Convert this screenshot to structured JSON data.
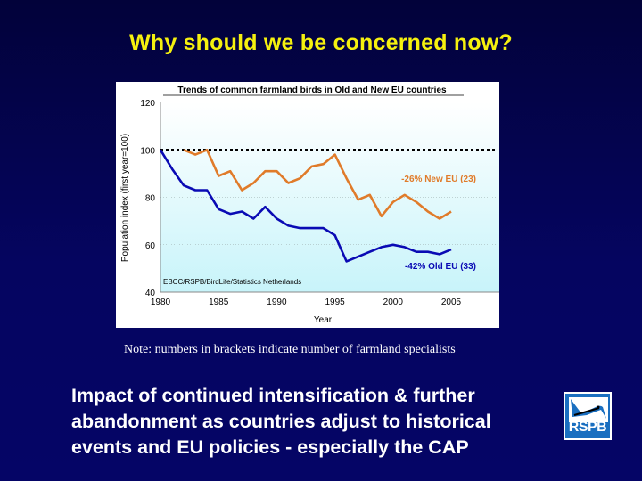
{
  "slide": {
    "title": "Why should we be concerned now?",
    "note": "Note: numbers in brackets indicate number of farmland specialists",
    "body_text": "Impact of continued intensification & further abandonment as countries adjust to historical events and EU policies - especially the CAP",
    "logo": {
      "text": "RSPB",
      "icon": "bird-icon"
    }
  },
  "colors": {
    "background": "#05055e",
    "title": "#f5f00f",
    "new_eu": "#e07b2a",
    "old_eu": "#0a0ab4",
    "plot_bg_top": "#ffffff",
    "plot_bg_bottom": "#c8f4fa"
  },
  "chart_data": {
    "type": "line",
    "title": "Trends of common farmland birds in Old and New EU countries",
    "xlabel": "Year",
    "ylabel": "Population index (first year=100)",
    "xlim": [
      1980,
      2008
    ],
    "ylim": [
      40,
      120
    ],
    "x_ticks": [
      "1980",
      "1985",
      "1990",
      "1995",
      "2000",
      "2005"
    ],
    "y_ticks": [
      "40",
      "60",
      "80",
      "100",
      "120"
    ],
    "grid": "horizontal dotted at 60, 80",
    "reference_line": {
      "y": 100,
      "style": "dotted black"
    },
    "source_annotation": "EBCC/RSPB/BirdLife/Statistics Netherlands",
    "series": [
      {
        "name": "-26% New EU (23)",
        "color": "#e07b2a",
        "x": [
          1982,
          1983,
          1984,
          1985,
          1986,
          1987,
          1988,
          1989,
          1990,
          1991,
          1992,
          1993,
          1994,
          1995,
          1996,
          1997,
          1998,
          1999,
          2000,
          2001,
          2002,
          2003,
          2004,
          2005
        ],
        "values": [
          100,
          98,
          100,
          89,
          91,
          83,
          86,
          91,
          91,
          86,
          88,
          93,
          94,
          98,
          88,
          79,
          81,
          72,
          78,
          81,
          78,
          74,
          71,
          74
        ]
      },
      {
        "name": "-42% Old EU (33)",
        "color": "#0a0ab4",
        "x": [
          1980,
          1981,
          1982,
          1983,
          1984,
          1985,
          1986,
          1987,
          1988,
          1989,
          1990,
          1991,
          1992,
          1993,
          1994,
          1995,
          1996,
          1997,
          1998,
          1999,
          2000,
          2001,
          2002,
          2003,
          2004,
          2005
        ],
        "values": [
          100,
          92,
          85,
          83,
          83,
          75,
          73,
          74,
          71,
          76,
          71,
          68,
          67,
          67,
          67,
          64,
          53,
          55,
          57,
          59,
          60,
          59,
          57,
          57,
          56,
          58
        ]
      }
    ]
  }
}
